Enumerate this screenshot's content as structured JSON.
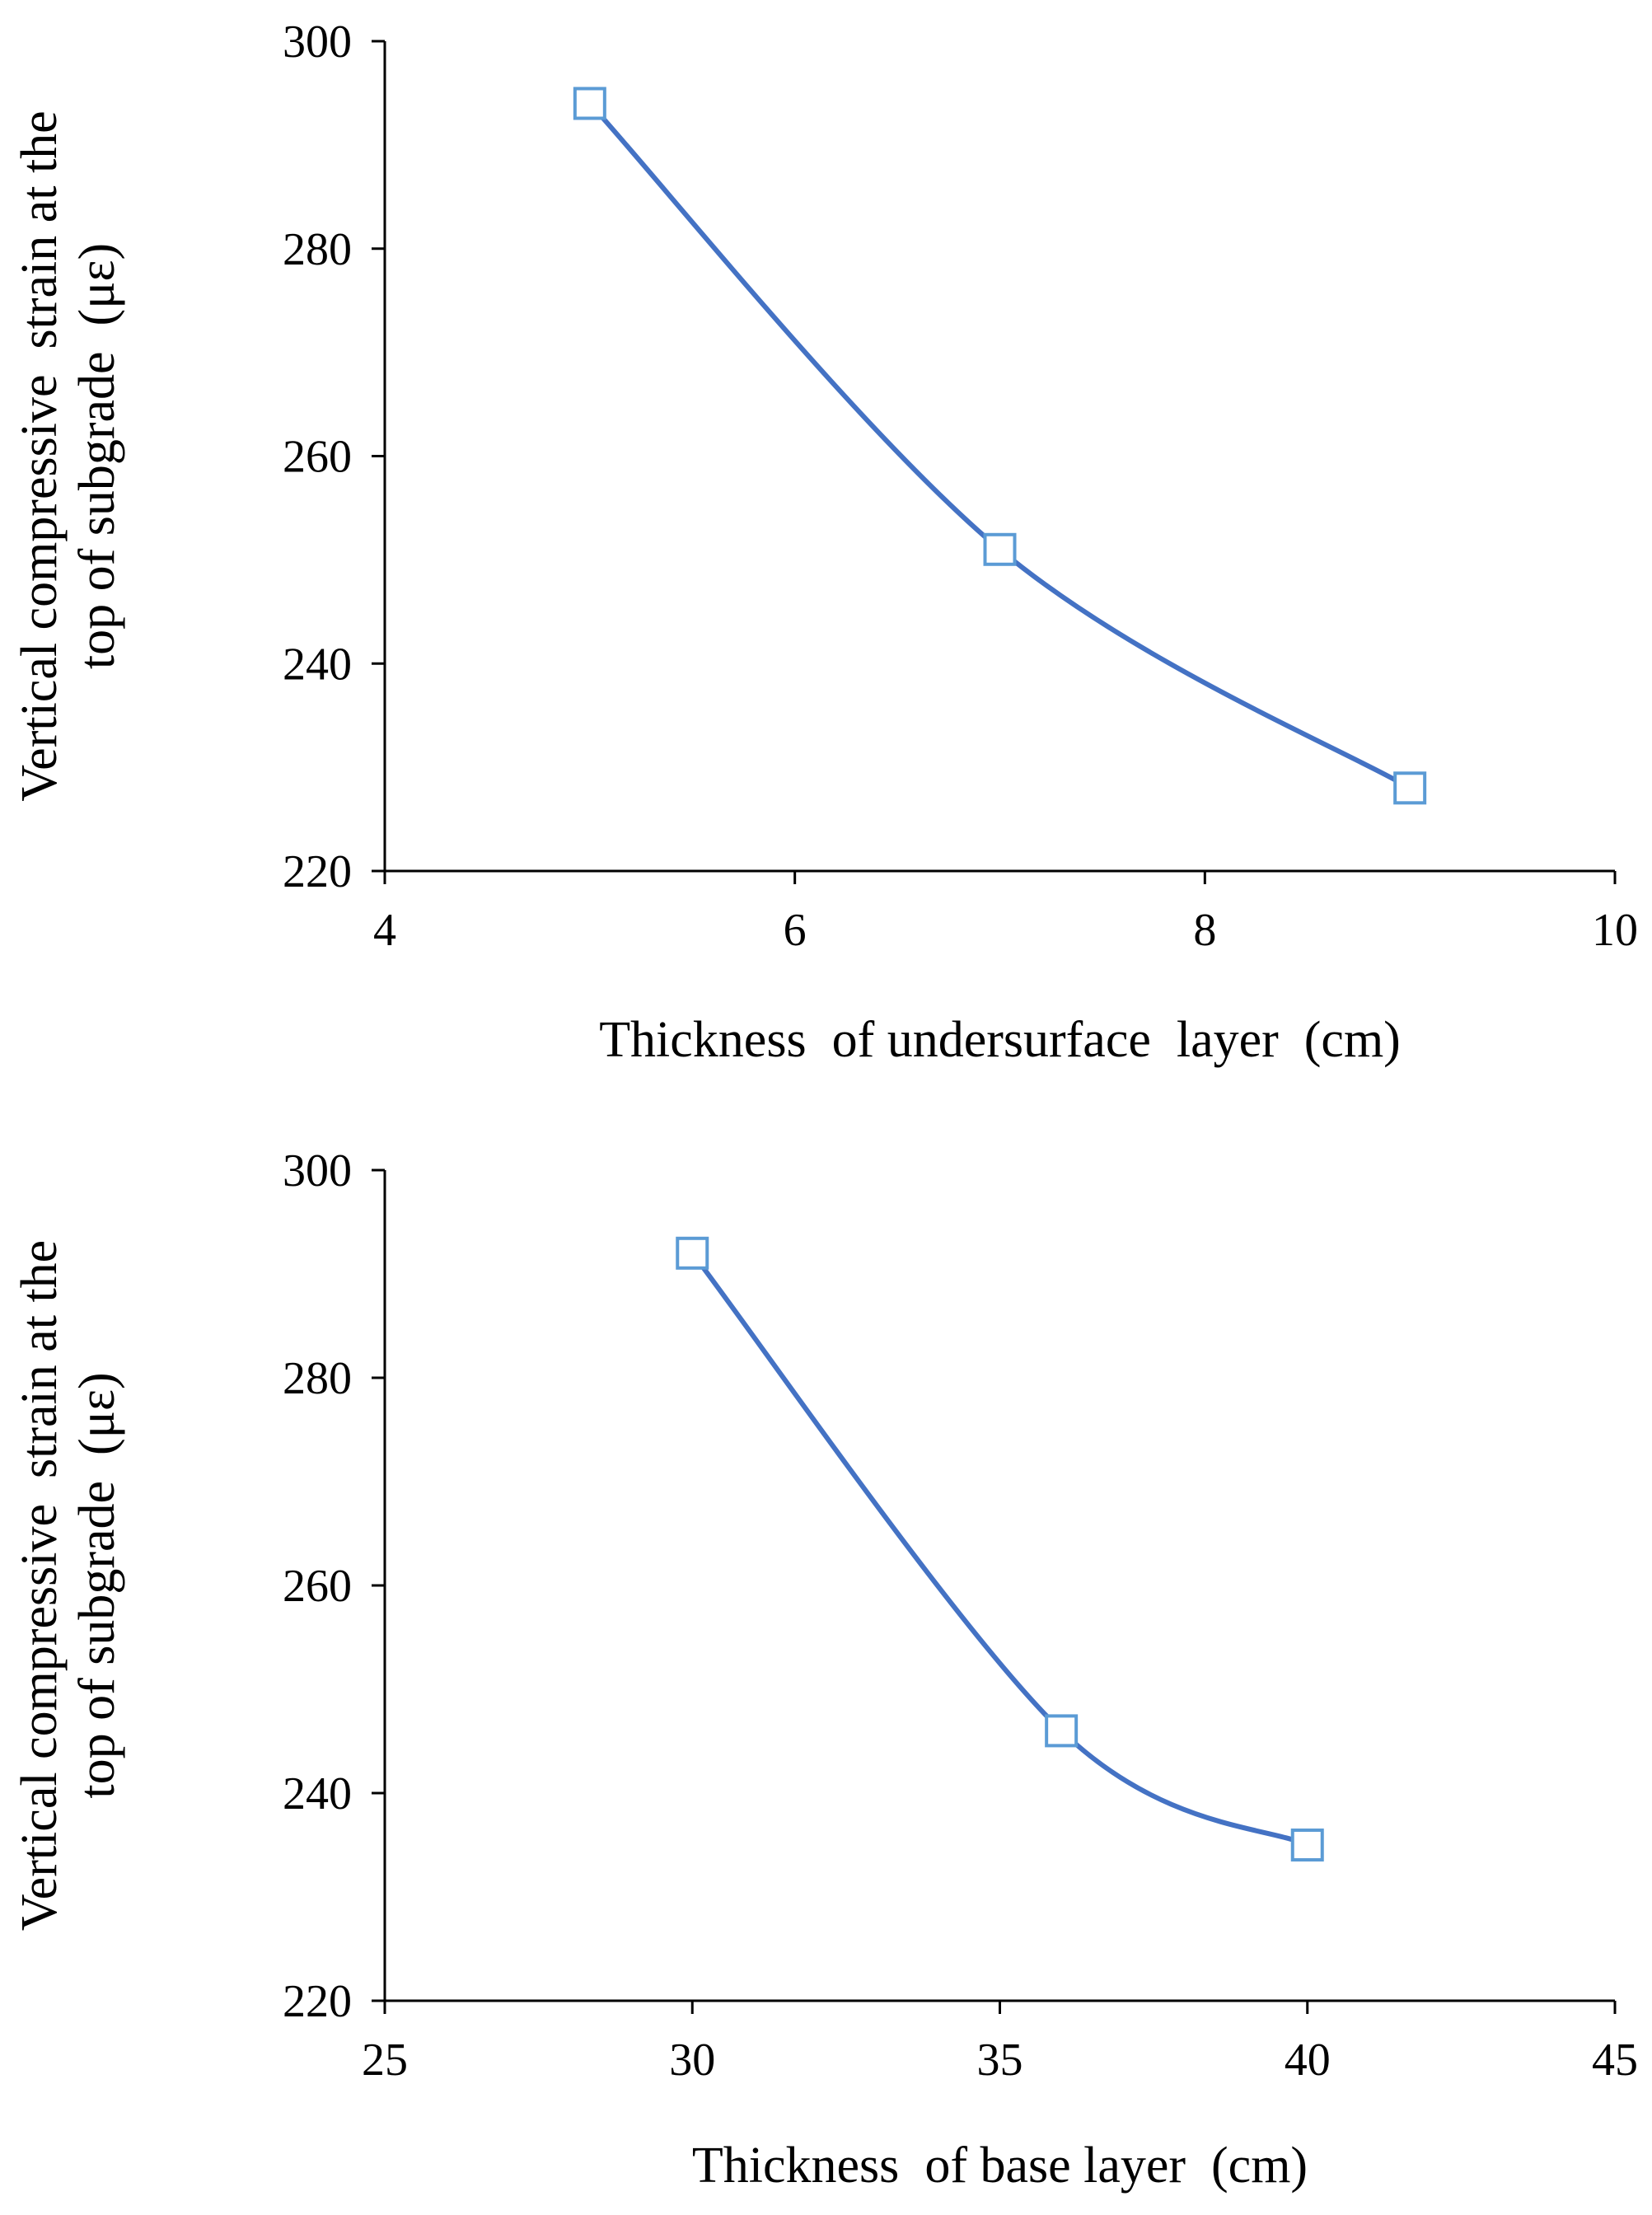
{
  "chart_data": [
    {
      "type": "line",
      "title": "",
      "xlabel": "Thickness  of undersurface  layer  (cm)",
      "ylabel_lines": [
        "Vertical compressive  strain at the",
        "top of subgrade  (με)"
      ],
      "xlim": [
        4,
        10
      ],
      "ylim": [
        220,
        300
      ],
      "xticks": [
        4,
        6,
        8,
        10
      ],
      "yticks": [
        220,
        240,
        260,
        280,
        300
      ],
      "smooth": true,
      "marker": "square",
      "series": [
        {
          "name": "undersurface",
          "x": [
            5,
            7,
            9
          ],
          "y": [
            294,
            251,
            228
          ]
        }
      ]
    },
    {
      "type": "line",
      "title": "",
      "xlabel": "Thickness  of base layer  (cm)",
      "ylabel_lines": [
        "Vertical compressive  strain at the",
        "top of subgrade  (με)"
      ],
      "xlim": [
        25,
        45
      ],
      "ylim": [
        220,
        300
      ],
      "xticks": [
        25,
        30,
        35,
        40,
        45
      ],
      "yticks": [
        220,
        240,
        260,
        280,
        300
      ],
      "smooth": true,
      "marker": "square",
      "series": [
        {
          "name": "base",
          "x": [
            30,
            36,
            40
          ],
          "y": [
            292,
            246,
            235
          ]
        }
      ]
    }
  ],
  "colors": {
    "line": "#4472C4",
    "marker": "#5B9BD5",
    "axis": "#000000"
  }
}
